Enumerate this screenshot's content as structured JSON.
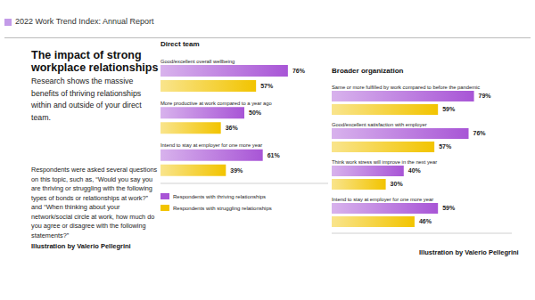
{
  "header": "2022 Work Trend Index: Annual Report",
  "title": "The impact of strong workplace relationships",
  "intro": "Research shows the massive benefits of thriving relationships within and outside of your direct team.",
  "note": "Respondents were asked several questions on this topic, such as, “Would you say you are thriving or struggling with the following types of bonds or relationships at work?” and “When thinking about your network/social circle at work, how much do you agree or disagree with the following statements?”",
  "credits": [
    "Illustration by Valerio Pellegrini",
    "Illustration by Valerio Pellegrini"
  ],
  "chart_data": [
    {
      "type": "bar",
      "title": "Direct team",
      "orientation": "horizontal",
      "categories": [
        "Good/excellent overall wellbeing",
        "More productive at work compared to a year ago",
        "Intend to stay at employer for one more year"
      ],
      "series": [
        {
          "name": "Respondents with thriving relationships",
          "color": "#a855d6",
          "values": [
            76,
            50,
            61
          ],
          "value_labels": [
            "76%",
            "50%",
            "61%"
          ]
        },
        {
          "name": "Respondents with struggling relationships",
          "color": "#f2c400",
          "values": [
            57,
            36,
            39
          ],
          "value_labels": [
            "57%",
            "36%",
            "39%"
          ]
        }
      ],
      "xlim": [
        0,
        100
      ],
      "tick_labels": false,
      "data_labels": true,
      "legend": "bottom"
    },
    {
      "type": "bar",
      "title": "Broader organization",
      "orientation": "horizontal",
      "categories": [
        "Same or more fulfilled by work compared to before the pandemic",
        "Good/excellent satisfaction with employer",
        "Think work stress will improve in the next year",
        "Intend to stay at employer for one more year"
      ],
      "series": [
        {
          "name": "Respondents with thriving relationships",
          "color": "#a855d6",
          "values": [
            79,
            76,
            40,
            59
          ],
          "value_labels": [
            "79%",
            "76%",
            "40%",
            "59%"
          ]
        },
        {
          "name": "Respondents with struggling relationships",
          "color": "#f2c400",
          "values": [
            59,
            57,
            30,
            46
          ],
          "value_labels": [
            "59%",
            "57%",
            "30%",
            "46%"
          ]
        }
      ],
      "xlim": [
        0,
        100
      ],
      "tick_labels": false,
      "data_labels": true
    }
  ]
}
